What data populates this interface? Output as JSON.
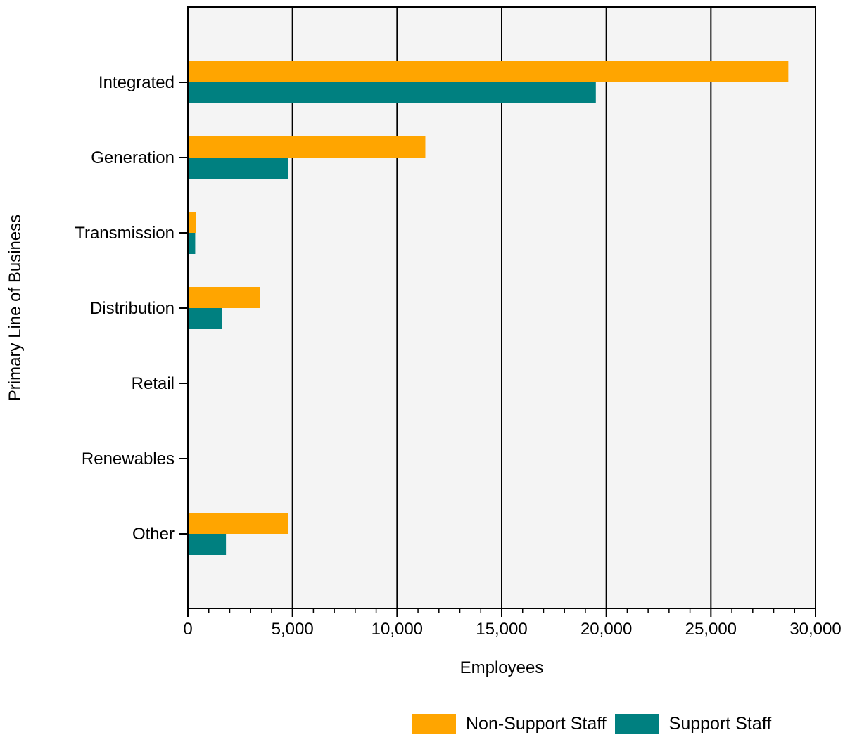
{
  "chart_data": {
    "type": "bar",
    "orientation": "horizontal",
    "categories": [
      "Integrated",
      "Generation",
      "Transmission",
      "Distribution",
      "Retail",
      "Renewables",
      "Other"
    ],
    "series": [
      {
        "name": "Non-Support Staff",
        "color": "#FFA500",
        "values": [
          28700,
          11350,
          400,
          3450,
          60,
          60,
          4800
        ]
      },
      {
        "name": "Support Staff",
        "color": "#008080",
        "values": [
          19500,
          4800,
          350,
          1620,
          60,
          60,
          1820
        ]
      }
    ],
    "xlabel": "Employees",
    "ylabel": "Primary Line of Business",
    "xlim": [
      0,
      30000
    ],
    "xticks": [
      0,
      5000,
      10000,
      15000,
      20000,
      25000,
      30000
    ],
    "xtick_labels": [
      "0",
      "5,000",
      "10,000",
      "15,000",
      "20,000",
      "25,000",
      "30,000"
    ],
    "grid": "vertical major lines",
    "background": "#F4F4F4",
    "legend_position": "bottom-right"
  }
}
